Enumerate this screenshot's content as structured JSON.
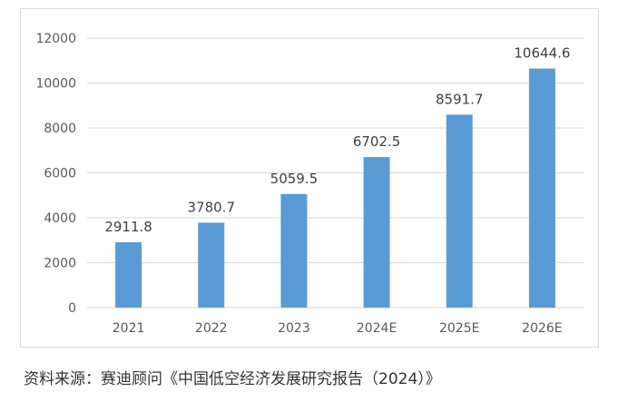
{
  "chart_data": {
    "type": "bar",
    "categories": [
      "2021",
      "2022",
      "2023",
      "2024E",
      "2025E",
      "2026E"
    ],
    "values": [
      2911.8,
      3780.7,
      5059.5,
      6702.5,
      8591.7,
      10644.6
    ],
    "value_labels": [
      "2911.8",
      "3780.7",
      "5059.5",
      "6702.5",
      "8591.7",
      "10644.6"
    ],
    "ylim": [
      0,
      12000
    ],
    "yticks": [
      0,
      2000,
      4000,
      6000,
      8000,
      10000,
      12000
    ],
    "ytick_labels": [
      "0",
      "2000",
      "4000",
      "6000",
      "8000",
      "10000",
      "12000"
    ],
    "grid": true,
    "legend": false,
    "bar_color": "#5b9bd5",
    "grid_color": "#d9d9d9"
  },
  "source_note": "资料来源：赛迪顾问《中国低空经济发展研究报告（2024）》"
}
